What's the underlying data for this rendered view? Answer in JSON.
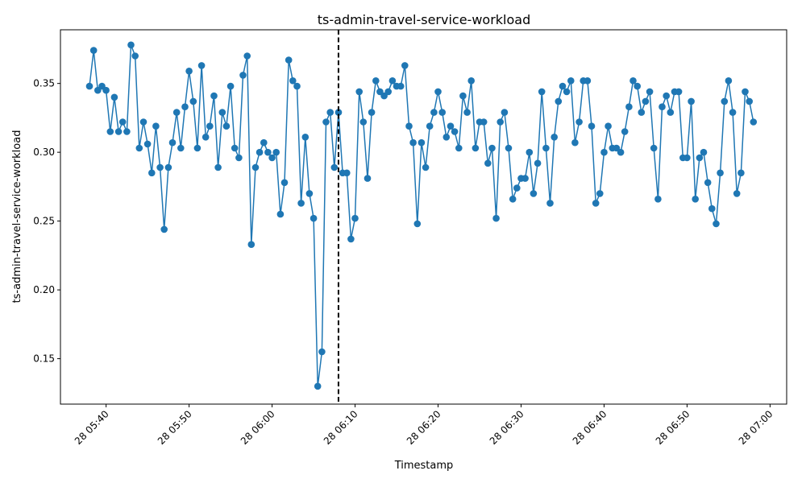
{
  "chart_data": {
    "type": "line",
    "title": "ts-admin-travel-service-workload",
    "xlabel": "Timestamp",
    "ylabel": "ts-admin-travel-service-workload",
    "x_start": "05:38",
    "x_step_minutes": 0.5,
    "xlim": [
      "05:34.5",
      "07:02"
    ],
    "ylim": [
      0.117,
      0.389
    ],
    "x_ticks": [
      "28 05:40",
      "28 05:50",
      "28 06:00",
      "28 06:10",
      "28 06:20",
      "28 06:30",
      "28 06:40",
      "28 06:50",
      "28 07:00"
    ],
    "y_ticks": [
      "0.15",
      "0.20",
      "0.25",
      "0.30",
      "0.35"
    ],
    "vline": {
      "x": "06:08",
      "style": "dashed",
      "color": "#000000"
    },
    "grid": false,
    "legend": "none",
    "series": [
      {
        "color": "#1f77b4",
        "values": [
          0.348,
          0.374,
          0.345,
          0.348,
          0.345,
          0.315,
          0.34,
          0.315,
          0.322,
          0.315,
          0.378,
          0.37,
          0.303,
          0.322,
          0.306,
          0.285,
          0.319,
          0.289,
          0.244,
          0.289,
          0.307,
          0.329,
          0.303,
          0.333,
          0.359,
          0.337,
          0.303,
          0.363,
          0.311,
          0.319,
          0.341,
          0.289,
          0.329,
          0.319,
          0.348,
          0.303,
          0.296,
          0.356,
          0.37,
          0.233,
          0.289,
          0.3,
          0.307,
          0.3,
          0.296,
          0.3,
          0.255,
          0.278,
          0.367,
          0.352,
          0.348,
          0.263,
          0.311,
          0.27,
          0.252,
          0.13,
          0.155,
          0.322,
          0.329,
          0.289,
          0.329,
          0.285,
          0.285,
          0.237,
          0.252,
          0.344,
          0.322,
          0.281,
          0.329,
          0.352,
          0.344,
          0.341,
          0.344,
          0.352,
          0.348,
          0.348,
          0.363,
          0.319,
          0.307,
          0.248,
          0.307,
          0.289,
          0.319,
          0.329,
          0.344,
          0.329,
          0.311,
          0.319,
          0.315,
          0.303,
          0.341,
          0.329,
          0.352,
          0.303,
          0.322,
          0.322,
          0.292,
          0.303,
          0.252,
          0.322,
          0.329,
          0.303,
          0.266,
          0.274,
          0.281,
          0.281,
          0.3,
          0.27,
          0.292,
          0.344,
          0.303,
          0.263,
          0.311,
          0.337,
          0.348,
          0.344,
          0.352,
          0.307,
          0.322,
          0.352,
          0.352,
          0.319,
          0.263,
          0.27,
          0.3,
          0.319,
          0.303,
          0.303,
          0.3,
          0.315,
          0.333,
          0.352,
          0.348,
          0.329,
          0.337,
          0.344,
          0.303,
          0.266,
          0.333,
          0.341,
          0.329,
          0.344,
          0.344,
          0.296,
          0.296,
          0.337,
          0.266,
          0.296,
          0.3,
          0.278,
          0.259,
          0.248,
          0.285,
          0.337,
          0.352,
          0.329,
          0.27,
          0.285,
          0.344,
          0.337,
          0.322
        ]
      }
    ]
  }
}
